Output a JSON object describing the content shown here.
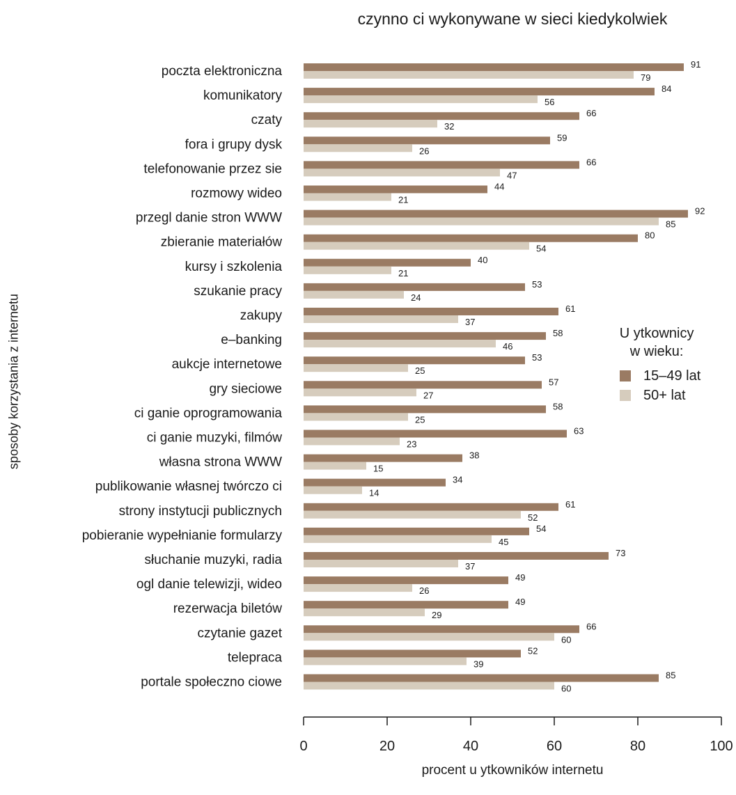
{
  "chart_data": {
    "type": "bar",
    "orientation": "horizontal",
    "title": "czynno ci wykonywane w sieci kiedykolwiek",
    "xlabel": "procent u ytkowników internetu",
    "ylabel": "sposoby korzystania z internetu",
    "xlim": [
      0,
      100
    ],
    "xticks": [
      "0",
      "20",
      "40",
      "60",
      "80",
      "100"
    ],
    "grid": false,
    "legend_position": "right",
    "legend_title": [
      "U ytkownicy",
      "w wieku:"
    ],
    "categories": [
      "poczta elektroniczna",
      "komunikatory",
      "czaty",
      "fora i grupy dysk",
      "telefonowanie przez sie",
      "rozmowy wideo",
      "przegl danie stron WWW",
      "zbieranie materiałów",
      "kursy i szkolenia",
      "szukanie pracy",
      "zakupy",
      "e–banking",
      "aukcje internetowe",
      "gry sieciowe",
      "ci ganie oprogramowania",
      "ci ganie muzyki, filmów",
      "własna strona WWW",
      "publikowanie własnej twórczo ci",
      "strony instytucji publicznych",
      "pobieranie wypełnianie formularzy",
      "słuchanie muzyki, radia",
      "ogl danie telewizji, wideo",
      "rezerwacja biletów",
      "czytanie gazet",
      "telepraca",
      "portale społeczno ciowe"
    ],
    "series": [
      {
        "name": "15–49 lat",
        "color": "#9a7b63",
        "values": [
          91,
          84,
          66,
          59,
          66,
          44,
          92,
          80,
          40,
          53,
          61,
          58,
          53,
          57,
          58,
          63,
          38,
          34,
          61,
          54,
          73,
          49,
          49,
          66,
          52,
          85
        ]
      },
      {
        "name": "50+ lat",
        "color": "#d6ccbd",
        "values": [
          79,
          56,
          32,
          26,
          47,
          21,
          85,
          54,
          21,
          24,
          37,
          46,
          25,
          27,
          25,
          23,
          15,
          14,
          52,
          45,
          37,
          26,
          29,
          60,
          39,
          60
        ]
      }
    ]
  }
}
